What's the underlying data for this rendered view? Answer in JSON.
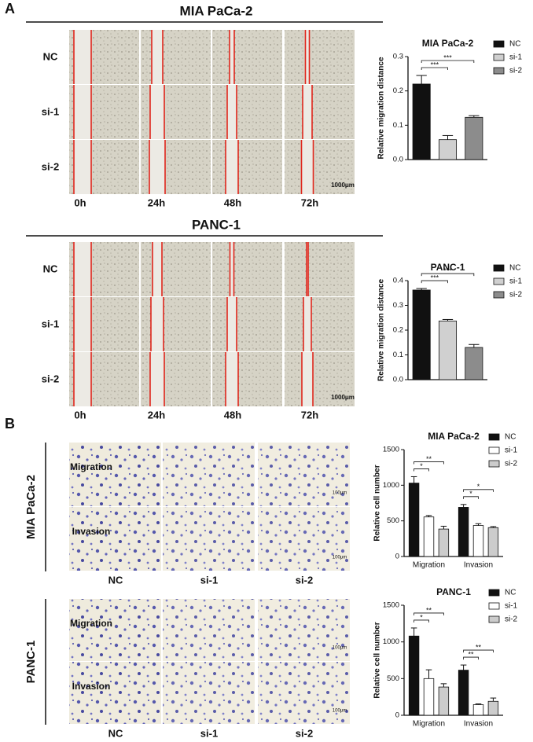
{
  "panel_labels": [
    "A",
    "B"
  ],
  "wound_assay": [
    {
      "title": "MIA PaCa-2",
      "rows": [
        "NC",
        "si-1",
        "si-2"
      ],
      "times": [
        "0h",
        "24h",
        "48h",
        "72h"
      ],
      "scale_bar": "1000μm"
    },
    {
      "title": "PANC-1",
      "rows": [
        "NC",
        "si-1",
        "si-2"
      ],
      "times": [
        "0h",
        "24h",
        "48h",
        "72h"
      ],
      "scale_bar": "1000μm"
    }
  ],
  "transwell_assay": [
    {
      "cell_line": "MIA PaCa-2",
      "rows": [
        "Migration",
        "Invasion"
      ],
      "groups": [
        "NC",
        "si-1",
        "si-2"
      ],
      "scale_bar": "100μm"
    },
    {
      "cell_line": "PANC-1",
      "rows": [
        "Migration",
        "Invasion"
      ],
      "groups": [
        "NC",
        "si-1",
        "si-2"
      ],
      "scale_bar": "100μm"
    }
  ],
  "chart_data": [
    {
      "type": "bar",
      "title": "MIA PaCa-2",
      "y_label": "Relative migration distance",
      "categories": [
        null
      ],
      "series": [
        {
          "name": "NC",
          "color": "#111111",
          "values": [
            0.22
          ],
          "errors": [
            0.025
          ]
        },
        {
          "name": "si-1",
          "color": "#d0d0d0",
          "values": [
            0.058
          ],
          "errors": [
            0.012
          ]
        },
        {
          "name": "si-2",
          "color": "#8c8c8c",
          "values": [
            0.123
          ],
          "errors": [
            0.005
          ]
        }
      ],
      "significance": [
        [
          "***",
          "***"
        ]
      ],
      "ylim": [
        0,
        0.3
      ],
      "yticks": [
        {
          "value": 0,
          "label": "0.0"
        },
        0.1,
        0.2,
        0.3
      ]
    },
    {
      "type": "bar",
      "title": "PANC-1",
      "y_label": "Relative migration distance",
      "categories": [
        null
      ],
      "series": [
        {
          "name": "NC",
          "color": "#111111",
          "values": [
            0.362
          ],
          "errors": [
            0.006
          ]
        },
        {
          "name": "si-1",
          "color": "#d0d0d0",
          "values": [
            0.237
          ],
          "errors": [
            0.006
          ]
        },
        {
          "name": "si-2",
          "color": "#8c8c8c",
          "values": [
            0.13
          ],
          "errors": [
            0.012
          ]
        }
      ],
      "significance": [
        [
          "***",
          "***"
        ]
      ],
      "ylim": [
        0,
        0.4
      ],
      "yticks": [
        {
          "value": 0,
          "label": "0.0"
        },
        0.1,
        0.2,
        0.3,
        0.4
      ]
    },
    {
      "type": "bar",
      "title": "MIA PaCa-2",
      "y_label": "Relative cell number",
      "categories": [
        "Migration",
        "Invasion"
      ],
      "series": [
        {
          "name": "NC",
          "color": "#111111",
          "values": [
            1030,
            690
          ],
          "errors": [
            90,
            40
          ]
        },
        {
          "name": "si-1",
          "color": "#ffffff",
          "values": [
            555,
            435
          ],
          "errors": [
            20,
            25
          ]
        },
        {
          "name": "si-2",
          "color": "#cccccc",
          "values": [
            385,
            405
          ],
          "errors": [
            40,
            15
          ]
        }
      ],
      "significance": [
        [
          "*",
          "**"
        ],
        [
          "*",
          "*"
        ]
      ],
      "ylim": [
        0,
        1500
      ],
      "yticks": [
        0,
        500,
        1000,
        1500
      ]
    },
    {
      "type": "bar",
      "title": "PANC-1",
      "y_label": "Relative cell number",
      "categories": [
        "Migration",
        "Invasion"
      ],
      "series": [
        {
          "name": "NC",
          "color": "#111111",
          "values": [
            1080,
            615
          ],
          "errors": [
            110,
            70
          ]
        },
        {
          "name": "si-1",
          "color": "#ffffff",
          "values": [
            500,
            145
          ],
          "errors": [
            120,
            10
          ]
        },
        {
          "name": "si-2",
          "color": "#cccccc",
          "values": [
            385,
            190
          ],
          "errors": [
            45,
            45
          ]
        }
      ],
      "significance": [
        [
          "*",
          "**"
        ],
        [
          "**",
          "**"
        ]
      ],
      "ylim": [
        0,
        1500
      ],
      "yticks": [
        0,
        500,
        1000,
        1500
      ]
    }
  ]
}
